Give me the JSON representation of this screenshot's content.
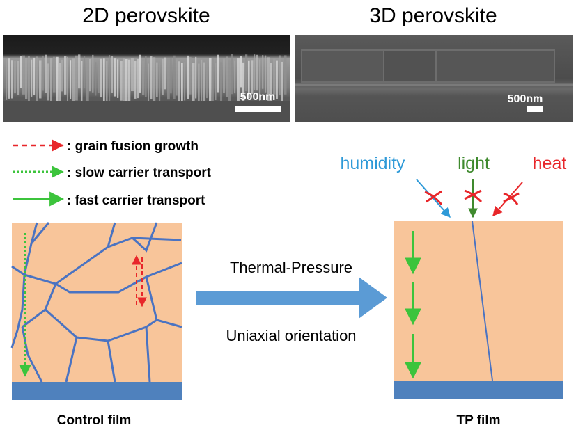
{
  "titles": {
    "left": "2D perovskite",
    "right": "3D perovskite"
  },
  "scale_bars": {
    "left": "500nm",
    "right": "500nm"
  },
  "legend": [
    {
      "label": ": grain fusion growth",
      "color": "#e8262a"
    },
    {
      "label": ": slow carrier transport",
      "color": "#3cc43c"
    },
    {
      "label": ": fast carrier transport",
      "color": "#3cc43c"
    }
  ],
  "stressors": [
    {
      "label": "humidity",
      "color": "#2e9ad8"
    },
    {
      "label": "light",
      "color": "#3f8a2e"
    },
    {
      "label": "heat",
      "color": "#e8262a"
    }
  ],
  "process": {
    "top": "Thermal-Pressure",
    "bottom": "Uniaxial orientation",
    "arrow_color": "#5b9bd5"
  },
  "captions": {
    "left": "Control film",
    "right": "TP film"
  },
  "colors": {
    "film": "#f8c59a",
    "substrate": "#4f81bd",
    "grain_boundary": "#4a73c2"
  }
}
